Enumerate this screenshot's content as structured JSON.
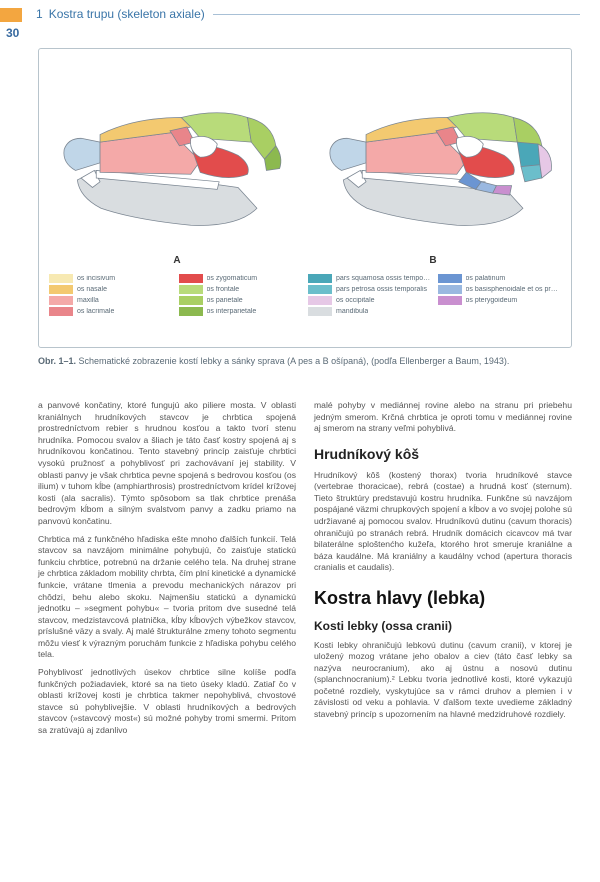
{
  "pageNumber": "30",
  "chapter": {
    "num": "1",
    "title": "Kostra trupu (skeleton axiale)"
  },
  "accent": "#3a75a8",
  "tabColor": "#f3a640",
  "figure": {
    "labelA": "A",
    "labelB": "B",
    "skullA_colors": {
      "tip": "#c0d6e8",
      "nasal": "#f3c970",
      "maxilla": "#f4a9a8",
      "lacrimal": "#e9858a",
      "frontal": "#b8db7a",
      "zyg": "#e24c4c",
      "parietal": "#a9cf63",
      "jaw": "#d9dde0",
      "inter": "#8cb94f"
    },
    "skullB_colors": {
      "tip": "#c0d6e8",
      "nasal": "#f3c970",
      "maxilla": "#f4a9a8",
      "lacrimal": "#e9858a",
      "frontal": "#b8db7a",
      "zyg": "#e24c4c",
      "parietal": "#a9cf63",
      "jaw": "#d9dde0",
      "inter": "#8cb94f",
      "squam": "#4aa7b8",
      "petro": "#6bbecb",
      "occ": "#e6c8e6",
      "mand": "#d9dde0",
      "pal": "#6b95d2",
      "basi": "#9ab8e0",
      "ptery": "#c98fcf"
    },
    "caption_bold": "Obr. 1–1.",
    "caption": " Schematické zobrazenie kostí lebky a sánky sprava (A pes a B ošípaná), (podľa Ellenberger a Baum, 1943)."
  },
  "legend": [
    {
      "c": "#f7e9b2",
      "t": "os incisivum"
    },
    {
      "c": "#e24c4c",
      "t": "os zygomaticum"
    },
    {
      "c": "#4aa7b8",
      "t": "pars squamosa ossis temporalis"
    },
    {
      "c": "#6b95d2",
      "t": "os palatinum"
    },
    {
      "c": "#f3c970",
      "t": "os nasale"
    },
    {
      "c": "#b8db7a",
      "t": "os frontale"
    },
    {
      "c": "#6bbecb",
      "t": "pars petrosa ossis temporalis"
    },
    {
      "c": "#9ab8e0",
      "t": "os basisphenoidale et os presphenoidale"
    },
    {
      "c": "#f4a9a8",
      "t": "maxilla"
    },
    {
      "c": "#a9cf63",
      "t": "os parietale"
    },
    {
      "c": "#e6c8e6",
      "t": "os occipitale"
    },
    {
      "c": "#c98fcf",
      "t": "os pterygoideum"
    },
    {
      "c": "#e9858a",
      "t": "os lacrimale"
    },
    {
      "c": "#8cb94f",
      "t": "os interparietale"
    },
    {
      "c": "#d9dde0",
      "t": "mandibula"
    }
  ],
  "col1": {
    "p1": "a panvové končatiny, ktoré fungujú ako piliere mosta. V oblasti kraniálnych hrudníkových stavcov je chrbtica spojená prostredníctvom rebier s hrudnou kosťou a takto tvorí stenu hrudníka. Pomocou svalov a šliach je táto časť kostry spojená aj s hrudníkovou končatinou. Tento stavebný princíp zaisťuje chrbtici vysokú pružnosť a pohyblivosť pri zachovávaní jej stability. V oblasti panvy je však chrbtica pevne spojená s bedrovou kosťou (os ilium) v tuhom kĺbe (amphiarthrosis) prostredníctvom krídel krížovej kosti (ala sacralis). Týmto spôsobom sa tlak chrbtice prenáša bedrovým kĺbom a silným svalstvom panvy a zadku priamo na panvovú končatinu.",
    "p2": "Chrbtica má z funkčného hľadiska ešte mnoho ďalších funkcií. Telá stavcov sa navzájom minimálne pohybujú, čo zaisťuje statickú funkciu chrbtice, potrebnú na držanie celého tela. Na druhej strane je chrbtica základom mobility chrbta, čím plní kinetické a dynamické funkcie, vrátane tlmenia a prevodu mechanických nárazov pri chôdzi, behu alebo skoku. Najmenšiu statickú a dynamickú jednotku – »segment pohybu« – tvoria pritom dve susedné telá stavcov, medzistavcová platnička, kĺby kĺbových výbežkov stavcov, príslušné väzy a svaly. Aj malé štrukturálne zmeny tohoto segmentu môžu viesť k výrazným poruchám funkcie z hľadiska pohybu celého tela.",
    "p3": "Pohyblivosť jednotlivých úsekov chrbtice silne kolíše podľa funkčných požiadaviek, ktoré sa na tieto úseky kladú. Zatiaľ čo v oblasti krížovej kosti je chrbtica takmer nepohyblivá, chvostové stavce sú pohyblivejšie. V oblasti hrudníkových a bedrových stavcov (»stavcový most«) sú možné pohyby tromi smermi. Pritom sa zratúvajú aj zdanlivo"
  },
  "col2": {
    "p1": "malé pohyby v mediánnej rovine alebo na stranu pri priebehu jedným smerom. Krčná chrbtica je oproti tomu v mediánnej rovine aj smerom na strany veľmi pohyblivá.",
    "h2": "Hrudníkový kôš",
    "p2": "Hrudníkový kôš (kostený thorax) tvoria hrudníkové stavce (vertebrae thoracicae), rebrá (costae) a hrudná kosť (sternum). Tieto štruktúry predstavujú kostru hrudníka. Funkčne sú navzájom pospájané väzmi chrupkových spojení a kĺbov a vo svojej polohe sú udržiavané aj pomocou svalov. Hrudníkovú dutinu (cavum thoracis) ohraničujú po stranách rebrá. Hrudník domácich cicavcov má tvar bilaterálne sploštenćho kužeľa, ktorého hrot smeruje kraniálne a báza kaudálne. Má kraniálny a kaudálny vchod (apertura thoracis cranialis et caudalis).",
    "h1": "Kostra hlavy (lebka)",
    "h3": "Kosti lebky (ossa cranii)",
    "p3": "Kosti lebky ohraničujú lebkovú dutinu (cavum cranii), v ktorej je uložený mozog vrátane jeho obalov a ciev (táto časť lebky sa nazýva neurocranium), ako aj ústnu a nosovú dutinu (splanchnocranium).² Lebku tvoria jednotlivé kosti, ktoré vykazujú početné rozdiely, vyskytujúce sa v rámci druhov a plemien i v závislosti od veku a pohlavia. V ďalšom texte uvedieme základný stavebný princíp s upozornením na hlavné medzidruhové rozdiely."
  }
}
